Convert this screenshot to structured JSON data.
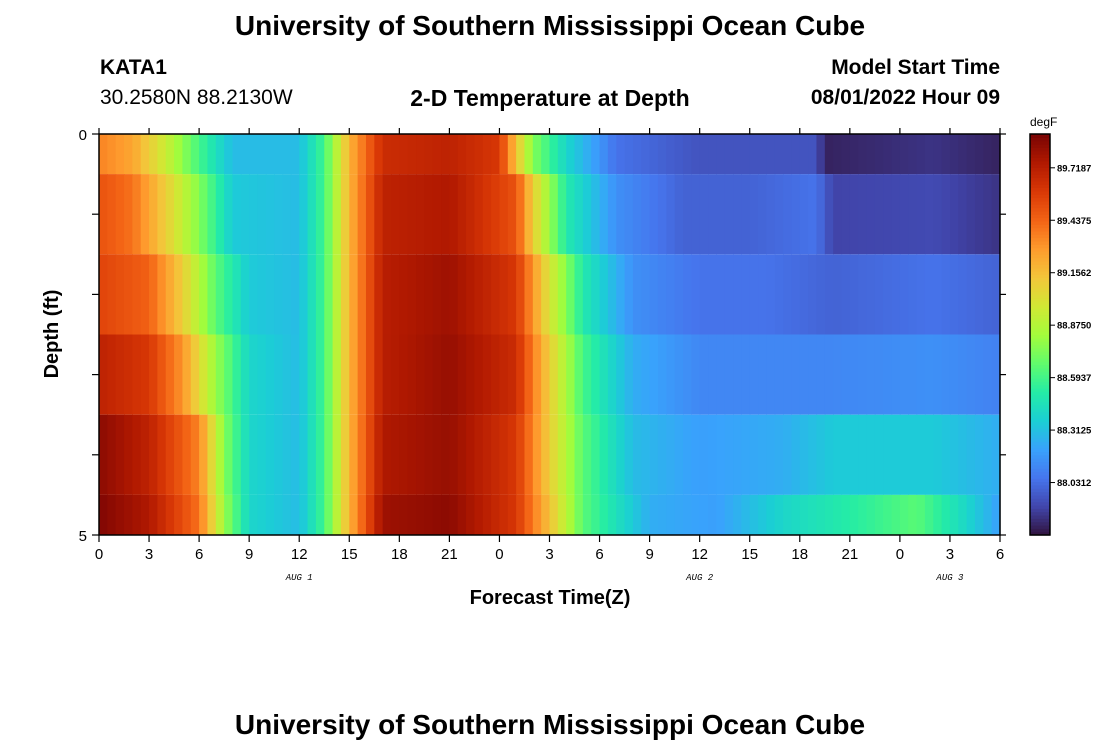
{
  "page": {
    "title": "University of Southern Mississippi Ocean Cube",
    "station_id": "KATA1",
    "coords": "30.2580N  88.2130W",
    "plot_title": "2-D Temperature at Depth",
    "model_start_label": "Model Start Time",
    "model_start_value": "08/01/2022 Hour 09",
    "footer_title": "University of Southern Mississippi Ocean Cube"
  },
  "chart_data": {
    "type": "heatmap",
    "title": "2-D Temperature at Depth",
    "xlabel": "Forecast Time(Z)",
    "ylabel": "Depth (ft)",
    "ylim": [
      0,
      5
    ],
    "y_ticks": [
      "0",
      "5"
    ],
    "x_tick_labels": [
      "0",
      "3",
      "6",
      "9",
      "12",
      "15",
      "18",
      "21",
      "0",
      "3",
      "6",
      "9",
      "12",
      "15",
      "18",
      "21",
      "0",
      "3",
      "6"
    ],
    "date_labels": [
      {
        "label": "AUG 1",
        "at_hour": 12
      },
      {
        "label": "AUG 2",
        "at_hour": 36
      },
      {
        "label": "AUG 3",
        "at_hour": 51
      }
    ],
    "x_hours": [
      0,
      54
    ],
    "depth_bands": [
      0,
      1,
      2,
      3,
      4,
      5
    ],
    "colorbar": {
      "unit": "degF",
      "range": [
        87.75,
        89.9
      ],
      "tick_labels": [
        "89.7187",
        "89.4375",
        "89.1562",
        "88.8750",
        "88.5937",
        "88.3125",
        "88.0312"
      ],
      "tick_values": [
        89.71875,
        89.4375,
        89.15625,
        88.875,
        88.59375,
        88.3125,
        88.03125
      ]
    },
    "rows": [
      {
        "depth": "0-1",
        "keys": [
          [
            0,
            89.35
          ],
          [
            2,
            89.25
          ],
          [
            4,
            88.95
          ],
          [
            6,
            88.6
          ],
          [
            8,
            88.3
          ],
          [
            12,
            88.3
          ],
          [
            13.5,
            88.6
          ],
          [
            15,
            89.2
          ],
          [
            17,
            89.65
          ],
          [
            21,
            89.7
          ],
          [
            24,
            89.6
          ],
          [
            25,
            89.15
          ],
          [
            26,
            88.75
          ],
          [
            28,
            88.4
          ],
          [
            31,
            88.05
          ],
          [
            36,
            87.95
          ],
          [
            43,
            87.95
          ],
          [
            43.5,
            87.8
          ],
          [
            46,
            87.82
          ],
          [
            50,
            87.85
          ],
          [
            54,
            87.8
          ]
        ]
      },
      {
        "depth": "1-2",
        "keys": [
          [
            0,
            89.5
          ],
          [
            2,
            89.4
          ],
          [
            4,
            89.1
          ],
          [
            6,
            88.75
          ],
          [
            8,
            88.35
          ],
          [
            12,
            88.3
          ],
          [
            13.5,
            88.6
          ],
          [
            15,
            89.2
          ],
          [
            17,
            89.7
          ],
          [
            21,
            89.75
          ],
          [
            25,
            89.5
          ],
          [
            26,
            89.1
          ],
          [
            28,
            88.5
          ],
          [
            31,
            88.15
          ],
          [
            35,
            88.0
          ],
          [
            39,
            88.0
          ],
          [
            43,
            88.05
          ],
          [
            44,
            87.9
          ],
          [
            50,
            87.92
          ],
          [
            54,
            87.85
          ]
        ]
      },
      {
        "depth": "2-3",
        "keys": [
          [
            0,
            89.55
          ],
          [
            3,
            89.45
          ],
          [
            5,
            89.1
          ],
          [
            7,
            88.65
          ],
          [
            9,
            88.35
          ],
          [
            12,
            88.3
          ],
          [
            13.5,
            88.6
          ],
          [
            15,
            89.2
          ],
          [
            17,
            89.72
          ],
          [
            21,
            89.8
          ],
          [
            25,
            89.6
          ],
          [
            27,
            89.0
          ],
          [
            29,
            88.5
          ],
          [
            32,
            88.15
          ],
          [
            36,
            88.05
          ],
          [
            40,
            88.05
          ],
          [
            44,
            88.0
          ],
          [
            50,
            88.05
          ],
          [
            54,
            88.0
          ]
        ]
      },
      {
        "depth": "3-4",
        "keys": [
          [
            0,
            89.7
          ],
          [
            3,
            89.6
          ],
          [
            5,
            89.3
          ],
          [
            7,
            88.8
          ],
          [
            9,
            88.4
          ],
          [
            12,
            88.3
          ],
          [
            13.5,
            88.6
          ],
          [
            15,
            89.2
          ],
          [
            17,
            89.72
          ],
          [
            21,
            89.82
          ],
          [
            25,
            89.65
          ],
          [
            27,
            89.1
          ],
          [
            29,
            88.6
          ],
          [
            32,
            88.25
          ],
          [
            36,
            88.12
          ],
          [
            44,
            88.12
          ],
          [
            50,
            88.15
          ],
          [
            54,
            88.1
          ]
        ]
      },
      {
        "depth": "4-5",
        "keys": [
          [
            0,
            89.85
          ],
          [
            3,
            89.7
          ],
          [
            6,
            89.35
          ],
          [
            7.5,
            88.75
          ],
          [
            9,
            88.4
          ],
          [
            12,
            88.3
          ],
          [
            13.5,
            88.6
          ],
          [
            15,
            89.2
          ],
          [
            17,
            89.75
          ],
          [
            21,
            89.82
          ],
          [
            25,
            89.6
          ],
          [
            27,
            89.1
          ],
          [
            29,
            88.65
          ],
          [
            32,
            88.3
          ],
          [
            36,
            88.2
          ],
          [
            41,
            88.25
          ],
          [
            44,
            88.35
          ],
          [
            50,
            88.35
          ],
          [
            54,
            88.25
          ]
        ]
      },
      {
        "depth": "5",
        "keys": [
          [
            0,
            89.88
          ],
          [
            3,
            89.75
          ],
          [
            6,
            89.4
          ],
          [
            7.5,
            88.8
          ],
          [
            9,
            88.4
          ],
          [
            12,
            88.3
          ],
          [
            13.5,
            88.6
          ],
          [
            15,
            89.2
          ],
          [
            17,
            89.8
          ],
          [
            21,
            89.85
          ],
          [
            25,
            89.6
          ],
          [
            27,
            89.15
          ],
          [
            29,
            88.65
          ],
          [
            33,
            88.25
          ],
          [
            37,
            88.2
          ],
          [
            41,
            88.4
          ],
          [
            46,
            88.55
          ],
          [
            49,
            88.65
          ],
          [
            52,
            88.4
          ],
          [
            54,
            88.2
          ]
        ]
      }
    ]
  },
  "colors": {
    "palette": [
      "#30123b",
      "#4145ab",
      "#4675ed",
      "#39a2fc",
      "#1bcfd4",
      "#24eca6",
      "#61fc6c",
      "#a4fc3b",
      "#d1e834",
      "#f3c63a",
      "#fe9b2d",
      "#f36315",
      "#d93806",
      "#b11901",
      "#7a0403"
    ]
  },
  "icons": []
}
